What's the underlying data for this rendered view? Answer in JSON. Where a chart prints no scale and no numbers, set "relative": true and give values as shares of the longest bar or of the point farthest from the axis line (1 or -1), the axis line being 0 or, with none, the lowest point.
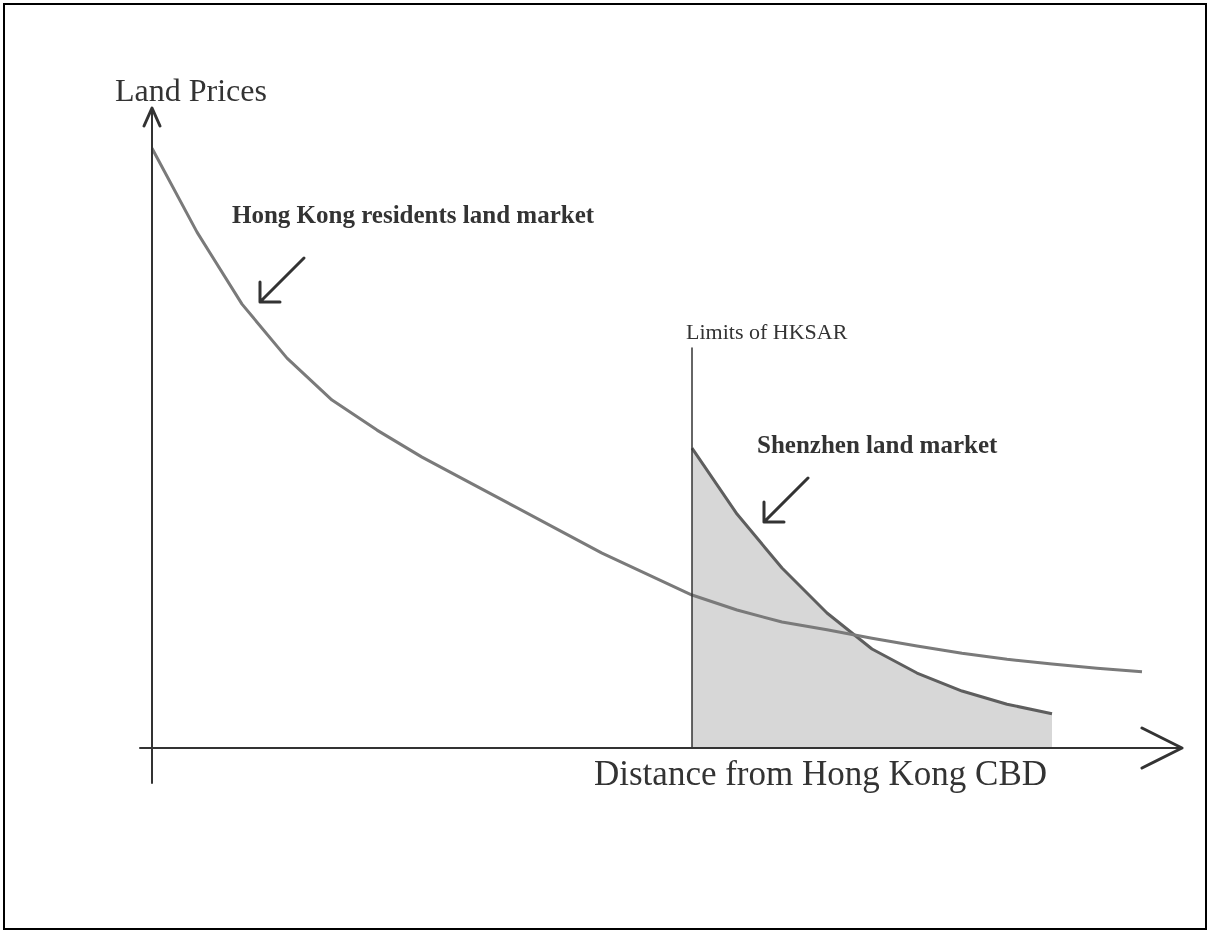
{
  "chart_data": {
    "type": "line",
    "relative": true,
    "xlabel": "Distance from Hong Kong CBD",
    "ylabel": "Land Prices",
    "tick_labels": false,
    "legend": false,
    "categories": [
      null,
      null,
      null,
      null,
      null,
      null,
      null,
      null,
      null,
      null,
      null,
      null,
      null,
      null,
      null,
      null,
      null,
      null,
      null,
      null,
      null,
      null,
      null
    ],
    "series": [
      {
        "name": "Hong Kong residents land market",
        "color": "#7a7a7a",
        "values": [
          1.0,
          0.86,
          0.74,
          0.65,
          0.58,
          0.53,
          0.485,
          0.445,
          0.405,
          0.365,
          0.325,
          0.29,
          0.255,
          0.23,
          0.21,
          0.197,
          0.183,
          0.17,
          0.158,
          0.148,
          0.14,
          0.133,
          0.127
        ]
      },
      {
        "name": "Shenzhen land market",
        "type": "area",
        "color": "#5e5e5e",
        "values": [
          null,
          null,
          null,
          null,
          null,
          null,
          null,
          null,
          null,
          null,
          null,
          null,
          0.5,
          0.39,
          0.3,
          0.225,
          0.165,
          0.125,
          0.095,
          0.073,
          0.057,
          null,
          null
        ]
      }
    ],
    "annotations": [
      "Limits of HKSAR"
    ]
  }
}
